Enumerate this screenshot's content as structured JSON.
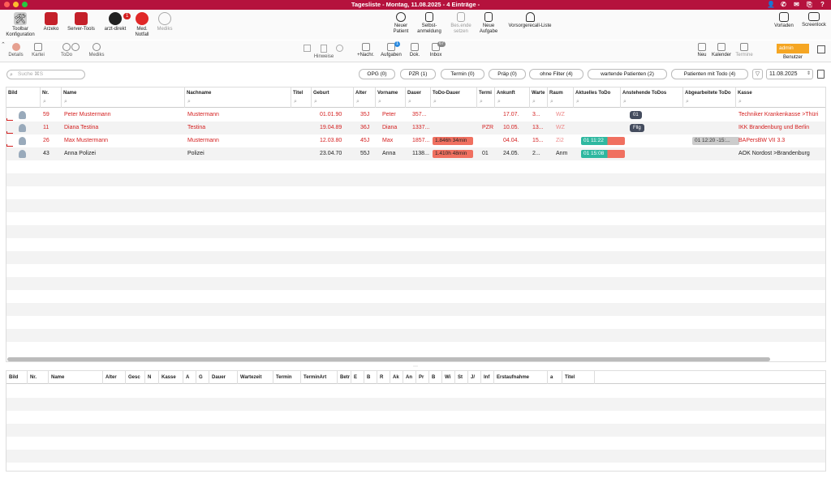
{
  "window": {
    "title": "Tagesliste - Montag, 11.08.2025 - 4 Einträge -"
  },
  "toolbar": {
    "items": [
      {
        "label1": "Toolbar",
        "label2": "Konfiguration"
      },
      {
        "label1": "Arzeko",
        "label2": ""
      },
      {
        "label1": "Server-Tools",
        "label2": ""
      },
      {
        "label1": "arzt-direkt",
        "label2": "",
        "badge": "1"
      },
      {
        "label1": "Med.",
        "label2": "Notfall"
      },
      {
        "label1": "Mediks",
        "label2": ""
      }
    ],
    "center": [
      {
        "label1": "Neuer",
        "label2": "Patient"
      },
      {
        "label1": "Selbst-",
        "label2": "anmeldung"
      },
      {
        "label1": "Bes.ende",
        "label2": "setzen"
      },
      {
        "label1": "Neue",
        "label2": "Aufgabe"
      },
      {
        "label1": "Vorsorgerecall-Liste",
        "label2": ""
      }
    ],
    "right": [
      {
        "label1": "Vorladen"
      },
      {
        "label1": "Screenlock"
      }
    ]
  },
  "toolbar2": {
    "left": [
      "Details",
      "Kartei",
      "ToDo",
      "Mediks"
    ],
    "hinweise": "Hinweise",
    "mid": [
      "+Nachr.",
      "Aufgaben",
      "Dok.",
      "Inbox"
    ],
    "aufgaben_badge": "1",
    "inbox_badge": "67",
    "right": [
      "Neu",
      "Kalender",
      "Termine"
    ],
    "user": "admin",
    "user_label": "Benutzer"
  },
  "filters": {
    "search_placeholder": "Suche ⌘S",
    "buttons": [
      "OPG (0)",
      "PZR (1)",
      "Termin (0)",
      "Präp (0)",
      "ohne Filter (4)",
      "wartende Patienten (2)",
      "Patienten mit Todo (4)"
    ],
    "date": "11.08.2025"
  },
  "table1": {
    "headers": [
      "Bild",
      "Nr.",
      "Name",
      "Nachname",
      "Titel",
      "Geburt",
      "Alter",
      "Vorname",
      "Dauer",
      "ToDo-Dauer",
      "Termi",
      "Ankunft",
      "Warte",
      "Raum",
      "Aktuelles ToDo",
      "Anstehende ToDos",
      "Abgearbeitete ToDo",
      "Kasse"
    ],
    "rows": [
      {
        "nr": "59",
        "name": "Peter Mustermann",
        "nachname": "Mustermann",
        "geburt": "01.01.90",
        "alter": "35J",
        "vorname": "Peter",
        "dauer": "357...",
        "todo": "",
        "termin": "",
        "ankunft": "17.07.",
        "warte": "3...",
        "raum": "WZ",
        "aktuell": "",
        "anstehend": "01",
        "abgearbeitet": "",
        "kasse": "Techniker Krankenkasse >Thüri",
        "red": true
      },
      {
        "nr": "11",
        "name": "Diana Testina",
        "nachname": "Testina",
        "geburt": "19.04.89",
        "alter": "36J",
        "vorname": "Diana",
        "dauer": "1337...",
        "todo": "",
        "termin": "PZR",
        "ankunft": "10.05.",
        "warte": "13...",
        "raum": "WZ",
        "aktuell": "",
        "anstehend": "Fllg",
        "abgearbeitet": "",
        "kasse": "IKK Brandenburg und Berlin",
        "red": true
      },
      {
        "nr": "26",
        "name": "Max Mustermann",
        "nachname": "Mustermann",
        "geburt": "12.03.80",
        "alter": "45J",
        "vorname": "Max",
        "dauer": "1857...",
        "todo": "1.846h 34min",
        "termin": "",
        "ankunft": "04.04.",
        "warte": "15...",
        "raum": "Zi2",
        "aktuell": "01 11:22",
        "anstehend": "",
        "abgearbeitet": "01 12:20 -15:...",
        "kasse": "BAPersBW VII 3.3",
        "red": true
      },
      {
        "nr": "43",
        "name": "Anna Polizei",
        "nachname": "Polizei",
        "geburt": "23.04.70",
        "alter": "55J",
        "vorname": "Anna",
        "dauer": "1138...",
        "todo": "1.410h 48min",
        "termin": "01",
        "ankunft": "24.05.",
        "warte": "2...",
        "raum": "Anm",
        "aktuell": "01 15:08",
        "anstehend": "",
        "abgearbeitet": "",
        "kasse": "AOK Nordost >Brandenburg",
        "red": false
      }
    ]
  },
  "table2": {
    "headers": [
      "Bild",
      "Nr.",
      "Name",
      "Alter",
      "Gesc",
      "N",
      "Kasse",
      "A",
      "G",
      "Dauer",
      "Wartezeit",
      "Termin",
      "TerminArt",
      "Betr",
      "E",
      "B",
      "R",
      "Ak",
      "An",
      "Pr",
      "B",
      "Wi",
      "St",
      "J/",
      "Inf",
      "Erstaufnahme",
      "a",
      "Titel"
    ]
  },
  "colors": {
    "titlebar": "#b5123d",
    "red_text": "#d42020",
    "todo_bar": "#f07060",
    "current_bar": "#2fb8a0",
    "user": "#f5a623"
  }
}
